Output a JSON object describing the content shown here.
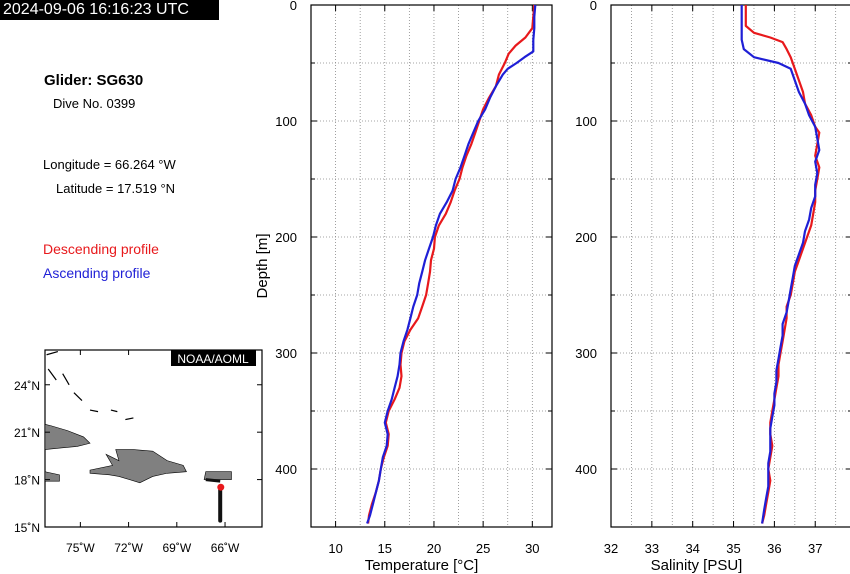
{
  "header": {
    "timestamp": "2024-09-06 16:16:23 UTC",
    "glider": "Glider: SG630",
    "dive": "Dive No. 0399",
    "longitude": "Longitude = 66.264 °W",
    "latitude": "Latitude = 17.519 °N",
    "descending_label": "Descending profile",
    "ascending_label": "Ascending profile"
  },
  "colors": {
    "descending": "#e8191c",
    "ascending": "#1f1fd6",
    "land": "#808080",
    "track": "#111111"
  },
  "map": {
    "credit": "NOAA/AOML",
    "lat_ticks": [
      {
        "v": 24,
        "label": "24˚N"
      },
      {
        "v": 21,
        "label": "21˚N"
      },
      {
        "v": 18,
        "label": "18˚N"
      },
      {
        "v": 15,
        "label": "15˚N"
      }
    ],
    "lon_ticks": [
      {
        "v": -75,
        "label": "75˚W"
      },
      {
        "v": -72,
        "label": "72˚W"
      },
      {
        "v": -69,
        "label": "69˚W"
      },
      {
        "v": -66,
        "label": "66˚W"
      }
    ],
    "lon_range": [
      -77.2,
      -63.7
    ],
    "lat_range": [
      15,
      26.2
    ],
    "glider_track": [
      [
        -66.3,
        15.4
      ],
      [
        -66.3,
        17.6
      ],
      [
        -66.27,
        17.52
      ]
    ],
    "glider_position": [
      -66.264,
      17.519
    ]
  },
  "chart_data": [
    {
      "type": "line",
      "xlabel": "Temperature [°C]",
      "ylabel": "Depth [m]",
      "xlim": [
        7.5,
        32
      ],
      "ylim": [
        450,
        0
      ],
      "xticks": [
        10,
        15,
        20,
        25,
        30
      ],
      "yticks": [
        0,
        100,
        200,
        300,
        400
      ],
      "grid": true,
      "series": [
        {
          "name": "Descending profile",
          "color": "#e8191c",
          "points": [
            [
              30.2,
              0
            ],
            [
              30.1,
              10
            ],
            [
              30.0,
              20
            ],
            [
              29.3,
              28
            ],
            [
              28.3,
              35
            ],
            [
              27.6,
              42
            ],
            [
              27.2,
              50
            ],
            [
              26.6,
              60
            ],
            [
              26.3,
              70
            ],
            [
              25.6,
              80
            ],
            [
              25.0,
              90
            ],
            [
              24.6,
              100
            ],
            [
              24.2,
              110
            ],
            [
              23.8,
              120
            ],
            [
              23.3,
              130
            ],
            [
              22.9,
              140
            ],
            [
              22.6,
              150
            ],
            [
              22.1,
              160
            ],
            [
              21.7,
              170
            ],
            [
              21.2,
              180
            ],
            [
              20.5,
              190
            ],
            [
              20.1,
              200
            ],
            [
              20.0,
              210
            ],
            [
              19.7,
              220
            ],
            [
              19.6,
              230
            ],
            [
              19.4,
              240
            ],
            [
              19.2,
              250
            ],
            [
              18.8,
              260
            ],
            [
              18.4,
              270
            ],
            [
              17.6,
              280
            ],
            [
              17.0,
              290
            ],
            [
              16.7,
              300
            ],
            [
              16.6,
              310
            ],
            [
              16.7,
              320
            ],
            [
              16.5,
              330
            ],
            [
              16.0,
              340
            ],
            [
              15.4,
              350
            ],
            [
              15.1,
              360
            ],
            [
              15.4,
              370
            ],
            [
              15.3,
              380
            ],
            [
              14.9,
              390
            ],
            [
              14.6,
              400
            ],
            [
              14.4,
              410
            ],
            [
              14.1,
              420
            ],
            [
              13.7,
              430
            ],
            [
              13.4,
              440
            ],
            [
              13.3,
              447
            ]
          ]
        },
        {
          "name": "Ascending profile",
          "color": "#1f1fd6",
          "points": [
            [
              30.3,
              0
            ],
            [
              30.2,
              10
            ],
            [
              30.2,
              20
            ],
            [
              30.1,
              30
            ],
            [
              30.1,
              40
            ],
            [
              29.2,
              45
            ],
            [
              28.4,
              50
            ],
            [
              27.5,
              55
            ],
            [
              27.0,
              60
            ],
            [
              26.3,
              70
            ],
            [
              25.7,
              80
            ],
            [
              25.2,
              90
            ],
            [
              24.5,
              100
            ],
            [
              24.0,
              110
            ],
            [
              23.5,
              120
            ],
            [
              23.1,
              130
            ],
            [
              22.7,
              140
            ],
            [
              22.2,
              150
            ],
            [
              21.9,
              160
            ],
            [
              21.3,
              170
            ],
            [
              20.6,
              180
            ],
            [
              20.2,
              190
            ],
            [
              19.9,
              200
            ],
            [
              19.5,
              210
            ],
            [
              19.1,
              220
            ],
            [
              18.8,
              230
            ],
            [
              18.5,
              240
            ],
            [
              18.3,
              250
            ],
            [
              17.9,
              260
            ],
            [
              17.6,
              270
            ],
            [
              17.3,
              280
            ],
            [
              16.9,
              290
            ],
            [
              16.6,
              300
            ],
            [
              16.5,
              310
            ],
            [
              16.3,
              320
            ],
            [
              16.0,
              330
            ],
            [
              15.7,
              340
            ],
            [
              15.3,
              350
            ],
            [
              15.0,
              360
            ],
            [
              15.3,
              370
            ],
            [
              15.2,
              380
            ],
            [
              14.8,
              390
            ],
            [
              14.6,
              400
            ],
            [
              14.4,
              410
            ],
            [
              14.1,
              420
            ],
            [
              13.8,
              430
            ],
            [
              13.5,
              440
            ],
            [
              13.2,
              447
            ]
          ]
        }
      ]
    },
    {
      "type": "line",
      "xlabel": "Salinity [PSU]",
      "ylabel": "",
      "xlim": [
        32,
        37.9
      ],
      "ylim": [
        450,
        0
      ],
      "xticks": [
        32,
        33,
        34,
        35,
        36,
        37
      ],
      "yticks": [
        0,
        100,
        200,
        300,
        400
      ],
      "grid": true,
      "series": [
        {
          "name": "Descending profile",
          "color": "#e8191c",
          "points": [
            [
              35.3,
              0
            ],
            [
              35.3,
              10
            ],
            [
              35.3,
              18
            ],
            [
              35.5,
              24
            ],
            [
              35.9,
              28
            ],
            [
              36.2,
              32
            ],
            [
              36.3,
              38
            ],
            [
              36.4,
              45
            ],
            [
              36.5,
              55
            ],
            [
              36.6,
              65
            ],
            [
              36.7,
              75
            ],
            [
              36.75,
              85
            ],
            [
              36.9,
              95
            ],
            [
              37.0,
              105
            ],
            [
              37.1,
              110
            ],
            [
              37.05,
              120
            ],
            [
              37.0,
              130
            ],
            [
              37.1,
              140
            ],
            [
              37.05,
              150
            ],
            [
              37.0,
              160
            ],
            [
              37.0,
              170
            ],
            [
              36.95,
              180
            ],
            [
              36.9,
              190
            ],
            [
              36.8,
              200
            ],
            [
              36.7,
              210
            ],
            [
              36.6,
              220
            ],
            [
              36.5,
              230
            ],
            [
              36.45,
              240
            ],
            [
              36.4,
              250
            ],
            [
              36.3,
              260
            ],
            [
              36.3,
              270
            ],
            [
              36.25,
              280
            ],
            [
              36.2,
              290
            ],
            [
              36.15,
              300
            ],
            [
              36.1,
              310
            ],
            [
              36.1,
              320
            ],
            [
              36.05,
              330
            ],
            [
              36.0,
              340
            ],
            [
              35.95,
              350
            ],
            [
              35.9,
              360
            ],
            [
              35.9,
              370
            ],
            [
              35.95,
              380
            ],
            [
              35.9,
              390
            ],
            [
              35.85,
              400
            ],
            [
              35.9,
              410
            ],
            [
              35.85,
              420
            ],
            [
              35.8,
              430
            ],
            [
              35.75,
              440
            ],
            [
              35.7,
              447
            ]
          ]
        },
        {
          "name": "Ascending profile",
          "color": "#1f1fd6",
          "points": [
            [
              35.2,
              0
            ],
            [
              35.2,
              10
            ],
            [
              35.2,
              20
            ],
            [
              35.2,
              30
            ],
            [
              35.25,
              38
            ],
            [
              35.5,
              45
            ],
            [
              36.1,
              50
            ],
            [
              36.4,
              55
            ],
            [
              36.5,
              65
            ],
            [
              36.6,
              75
            ],
            [
              36.75,
              85
            ],
            [
              36.85,
              95
            ],
            [
              37.0,
              105
            ],
            [
              37.05,
              115
            ],
            [
              37.1,
              125
            ],
            [
              37.0,
              135
            ],
            [
              37.05,
              145
            ],
            [
              37.0,
              155
            ],
            [
              37.0,
              165
            ],
            [
              36.9,
              175
            ],
            [
              36.85,
              185
            ],
            [
              36.75,
              195
            ],
            [
              36.7,
              205
            ],
            [
              36.6,
              215
            ],
            [
              36.5,
              225
            ],
            [
              36.45,
              235
            ],
            [
              36.4,
              245
            ],
            [
              36.35,
              255
            ],
            [
              36.3,
              265
            ],
            [
              36.2,
              275
            ],
            [
              36.2,
              285
            ],
            [
              36.15,
              295
            ],
            [
              36.1,
              305
            ],
            [
              36.05,
              315
            ],
            [
              36.05,
              325
            ],
            [
              36.0,
              335
            ],
            [
              36.0,
              345
            ],
            [
              35.95,
              355
            ],
            [
              35.9,
              365
            ],
            [
              35.9,
              375
            ],
            [
              35.9,
              385
            ],
            [
              35.85,
              395
            ],
            [
              35.85,
              405
            ],
            [
              35.85,
              415
            ],
            [
              35.8,
              425
            ],
            [
              35.75,
              435
            ],
            [
              35.7,
              447
            ]
          ]
        }
      ]
    }
  ]
}
